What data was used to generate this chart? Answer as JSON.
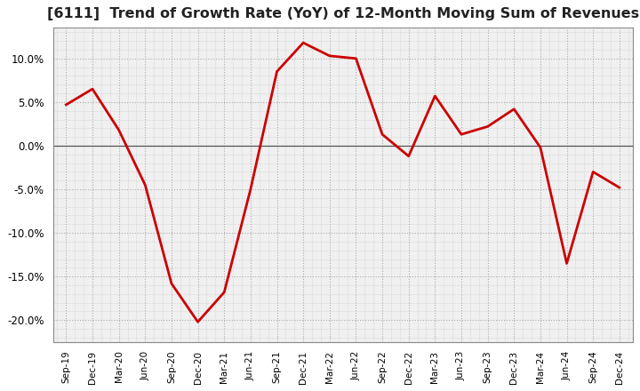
{
  "title": "[6111]  Trend of Growth Rate (YoY) of 12-Month Moving Sum of Revenues",
  "title_fontsize": 11.5,
  "line_color": "#cc0000",
  "line_width": 2.0,
  "background_color": "#ffffff",
  "plot_bg_color": "#f0f0f0",
  "grid_color": "#ffffff",
  "grid_major_color": "#aaaaaa",
  "ylim": [
    -0.225,
    0.135
  ],
  "yticks": [
    -0.2,
    -0.15,
    -0.1,
    -0.05,
    0.0,
    0.05,
    0.1
  ],
  "xtick_labels": [
    "Sep-19",
    "Dec-19",
    "Mar-20",
    "Jun-20",
    "Sep-20",
    "Dec-20",
    "Mar-21",
    "Jun-21",
    "Sep-21",
    "Dec-21",
    "Mar-22",
    "Jun-22",
    "Sep-22",
    "Dec-22",
    "Mar-23",
    "Jun-23",
    "Sep-23",
    "Dec-23",
    "Mar-24",
    "Jun-24",
    "Sep-24",
    "Dec-24"
  ],
  "values": [
    0.047,
    0.065,
    0.018,
    -0.045,
    -0.158,
    -0.202,
    -0.168,
    -0.05,
    0.085,
    0.118,
    0.103,
    0.1,
    0.013,
    -0.012,
    0.057,
    0.013,
    0.022,
    0.042,
    -0.002,
    -0.135,
    -0.03,
    -0.048
  ]
}
